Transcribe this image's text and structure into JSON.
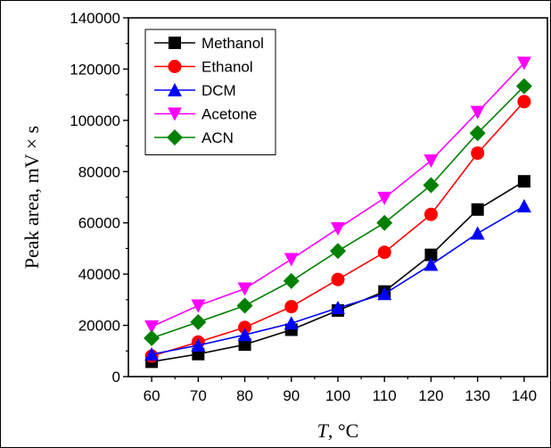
{
  "chart_data": {
    "type": "line",
    "x": [
      60,
      70,
      80,
      90,
      100,
      110,
      120,
      130,
      140
    ],
    "xlabel_var": "T",
    "xlabel_unit": ", °C",
    "ylabel": "Peak area, mV × s",
    "xlim": [
      55,
      145
    ],
    "ylim": [
      0,
      140000
    ],
    "xticks": [
      "60",
      "70",
      "80",
      "90",
      "100",
      "110",
      "120",
      "130",
      "140"
    ],
    "yticks": [
      "0",
      "20000",
      "40000",
      "60000",
      "80000",
      "100000",
      "120000",
      "140000"
    ],
    "xtick_values": [
      60,
      70,
      80,
      90,
      100,
      110,
      120,
      130,
      140
    ],
    "ytick_values": [
      0,
      20000,
      40000,
      60000,
      80000,
      100000,
      120000,
      140000
    ],
    "grid": false,
    "legend_position": "top-left",
    "series": [
      {
        "name": "Methanol",
        "marker": "square",
        "color": "#000000",
        "values": [
          5800,
          8800,
          12500,
          18300,
          25800,
          33200,
          47500,
          65200,
          76200
        ]
      },
      {
        "name": "Ethanol",
        "marker": "circle",
        "color": "#ff0000",
        "values": [
          8000,
          13500,
          19200,
          27300,
          37900,
          48500,
          63300,
          87200,
          107300
        ]
      },
      {
        "name": "DCM",
        "marker": "triangle-up",
        "color": "#0000ff",
        "values": [
          8700,
          12200,
          16300,
          20800,
          26800,
          32300,
          43700,
          55900,
          66500
        ]
      },
      {
        "name": "Acetone",
        "marker": "triangle-down",
        "color": "#ff00ff",
        "values": [
          19500,
          27700,
          34300,
          45800,
          57800,
          69700,
          84300,
          103200,
          122400
        ]
      },
      {
        "name": "ACN",
        "marker": "diamond",
        "color": "#008000",
        "values": [
          15000,
          21300,
          27700,
          37300,
          49000,
          60000,
          74700,
          95000,
          113300
        ]
      }
    ]
  }
}
